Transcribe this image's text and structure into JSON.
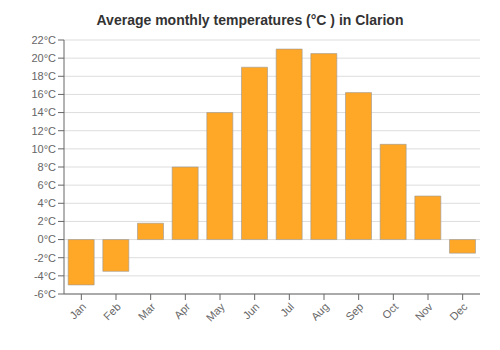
{
  "chart_data": {
    "type": "bar",
    "title": "Average monthly temperatures (°C ) in Clarion",
    "categories": [
      "Jan",
      "Feb",
      "Mar",
      "Apr",
      "May",
      "Jun",
      "Jul",
      "Aug",
      "Sep",
      "Oct",
      "Nov",
      "Dec"
    ],
    "values": [
      -5.0,
      -3.5,
      1.8,
      8.0,
      14.0,
      19.0,
      21.0,
      20.5,
      16.2,
      10.5,
      4.8,
      -1.5
    ],
    "color": "#FFA726",
    "ylim": [
      -6,
      22
    ],
    "yticks": [
      {
        "value": -6,
        "label": "-6°C"
      },
      {
        "value": -4,
        "label": "-4°C"
      },
      {
        "value": -2,
        "label": "-2°C"
      },
      {
        "value": 0,
        "label": "0°C"
      },
      {
        "value": 2,
        "label": "2°C"
      },
      {
        "value": 4,
        "label": "4°C"
      },
      {
        "value": 6,
        "label": "6°C"
      },
      {
        "value": 8,
        "label": "8°C"
      },
      {
        "value": 10,
        "label": "10°C"
      },
      {
        "value": 12,
        "label": "12°C"
      },
      {
        "value": 14,
        "label": "14°C"
      },
      {
        "value": 16,
        "label": "16°C"
      },
      {
        "value": 18,
        "label": "18°C"
      },
      {
        "value": 20,
        "label": "20°C"
      },
      {
        "value": 22,
        "label": "22°C"
      }
    ],
    "grid": true
  }
}
